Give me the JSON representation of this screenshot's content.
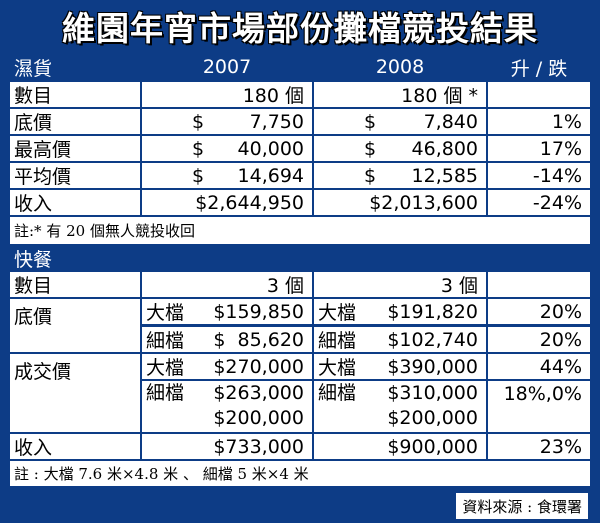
{
  "title": "維園年宵市場部份攤檔競投結果",
  "wet": {
    "label": "濕貨",
    "col2007": "2007",
    "col2008": "2008",
    "colChange": "升 / 跌",
    "rows": [
      {
        "label": "數目",
        "v2007": "180 個",
        "v2008": "180 個 *",
        "change": ""
      },
      {
        "label": "底價",
        "cur": "$",
        "v2007": "7,750",
        "v2008": "7,840",
        "change": "1%"
      },
      {
        "label": "最高價",
        "cur": "$",
        "v2007": "40,000",
        "v2008": "46,800",
        "change": "17%"
      },
      {
        "label": "平均價",
        "cur": "$",
        "v2007": "14,694",
        "v2008": "12,585",
        "change": "-14%"
      },
      {
        "label": "收入",
        "v2007": "$2,644,950",
        "v2008": "$2,013,600",
        "change": "-24%"
      }
    ],
    "note": "註:* 有 20 個無人競投收回"
  },
  "snack": {
    "label": "快餐",
    "count": {
      "label": "數目",
      "v2007": "3 個",
      "v2008": "3 個"
    },
    "base": {
      "label": "底價",
      "big": {
        "tag": "大檔",
        "v2007": "$159,850",
        "v2008": "$191,820",
        "change": "20%"
      },
      "small": {
        "tag": "細檔",
        "v2007": "$  85,620",
        "v2008": "$102,740",
        "change": "20%"
      }
    },
    "deal": {
      "label": "成交價",
      "big": {
        "tag": "大檔",
        "v2007": "$270,000",
        "v2008": "$390,000",
        "change": "44%"
      },
      "small": {
        "tag": "細檔",
        "v2007a": "$263,000",
        "v2007b": "$200,000",
        "v2008a": "$310,000",
        "v2008b": "$200,000",
        "change": "18%,0%"
      }
    },
    "income": {
      "label": "收入",
      "v2007": "$733,000",
      "v2008": "$900,000",
      "change": "23%"
    },
    "note": "註 : 大檔 7.6 米×4.8 米 、 細檔 5 米×4 米"
  },
  "source": "資料來源 : 食環署"
}
